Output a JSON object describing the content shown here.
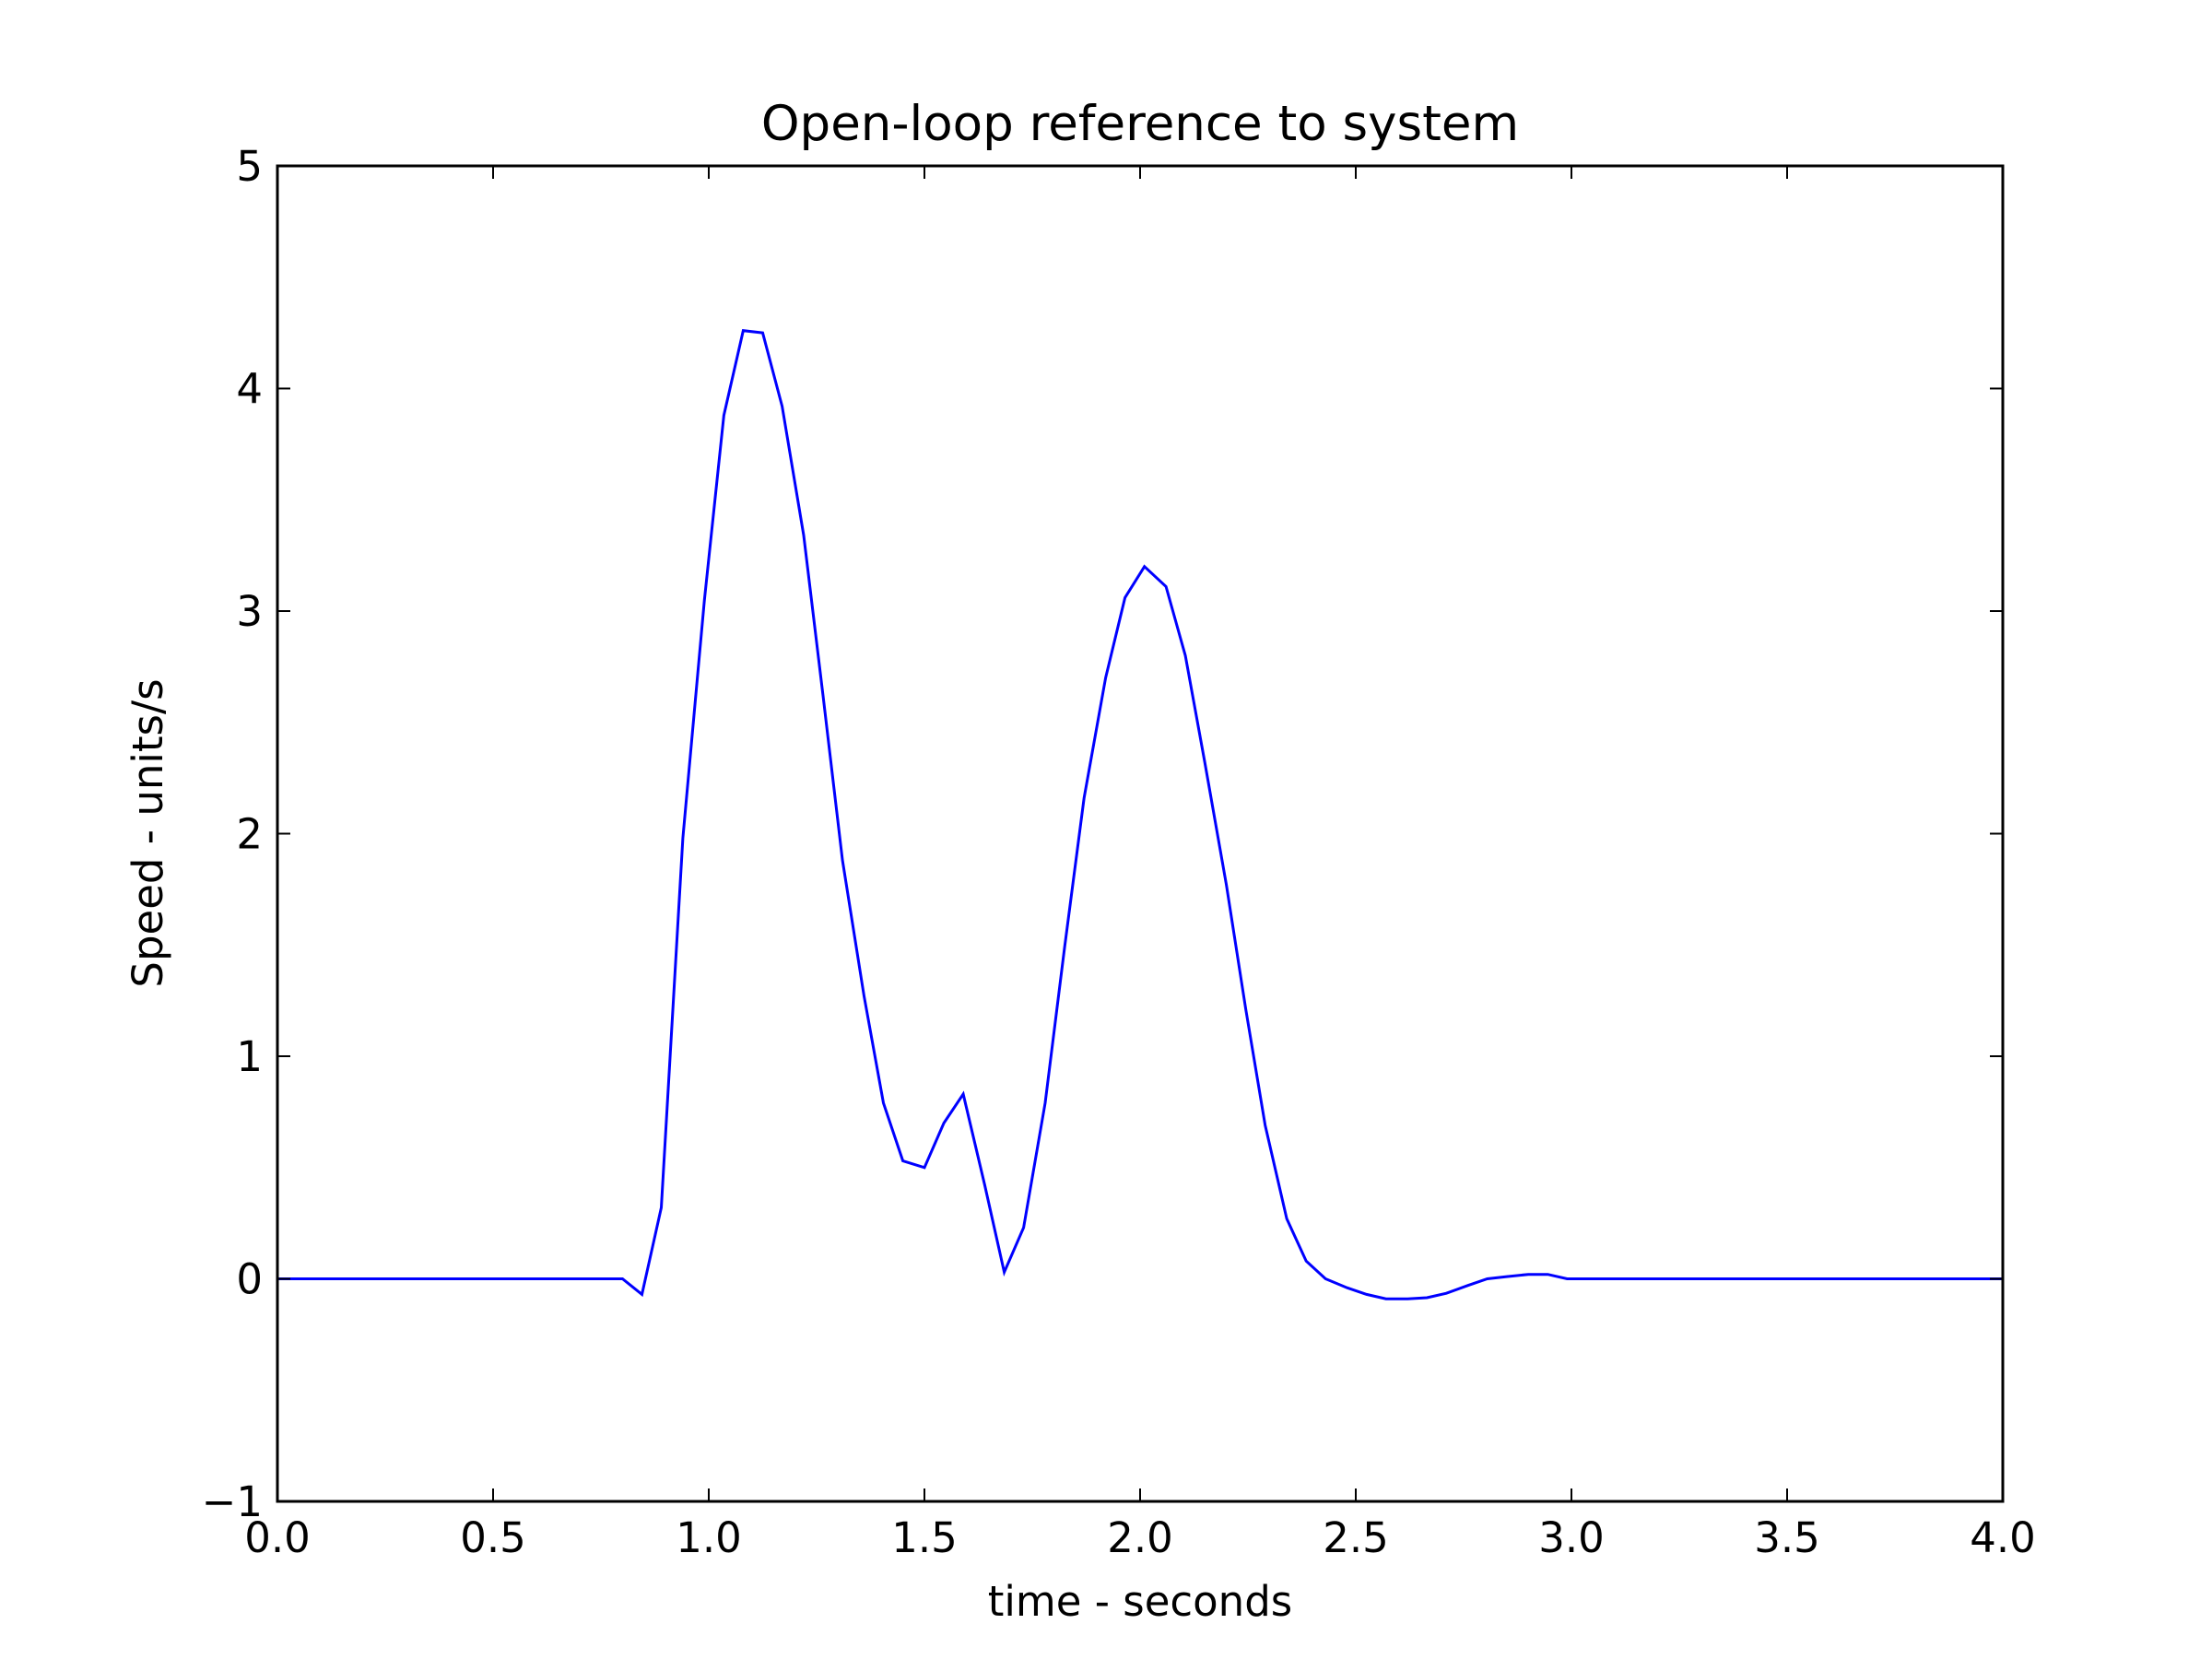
{
  "chart_data": {
    "type": "line",
    "title": "Open-loop reference to system",
    "xlabel": "time - seconds",
    "ylabel": "Speed - units/s",
    "xlim": [
      0.0,
      4.0
    ],
    "ylim": [
      -1,
      5
    ],
    "xticks": [
      "0.0",
      "0.5",
      "1.0",
      "1.5",
      "2.0",
      "2.5",
      "3.0",
      "3.5",
      "4.0"
    ],
    "yticks": [
      "−1",
      "0",
      "1",
      "2",
      "3",
      "4",
      "5"
    ],
    "grid": false,
    "legend": "none",
    "series": [
      {
        "color": "#0000ff",
        "x": [
          0.0,
          0.8,
          0.845,
          0.89,
          0.94,
          0.99,
          1.035,
          1.08,
          1.125,
          1.17,
          1.22,
          1.265,
          1.31,
          1.36,
          1.405,
          1.45,
          1.5,
          1.545,
          1.59,
          1.64,
          1.685,
          1.73,
          1.78,
          1.825,
          1.87,
          1.92,
          1.965,
          2.01,
          2.06,
          2.105,
          2.15,
          2.2,
          2.245,
          2.29,
          2.34,
          2.385,
          2.43,
          2.48,
          2.525,
          2.57,
          2.62,
          2.665,
          2.71,
          2.76,
          2.805,
          2.85,
          2.9,
          2.945,
          2.99,
          3.04,
          3.5,
          4.0
        ],
        "y": [
          0.0,
          0.0,
          -0.07,
          0.32,
          1.98,
          3.05,
          3.88,
          4.26,
          4.25,
          3.92,
          3.34,
          2.62,
          1.88,
          1.27,
          0.79,
          0.53,
          0.5,
          0.7,
          0.83,
          0.42,
          0.03,
          0.23,
          0.79,
          1.49,
          2.16,
          2.7,
          3.06,
          3.2,
          3.11,
          2.8,
          2.32,
          1.77,
          1.21,
          0.69,
          0.27,
          0.08,
          0.0,
          -0.04,
          -0.07,
          -0.09,
          -0.09,
          -0.085,
          -0.065,
          -0.03,
          0.0,
          0.01,
          0.02,
          0.02,
          0.0,
          0.0,
          0.0,
          0.0
        ]
      }
    ]
  }
}
